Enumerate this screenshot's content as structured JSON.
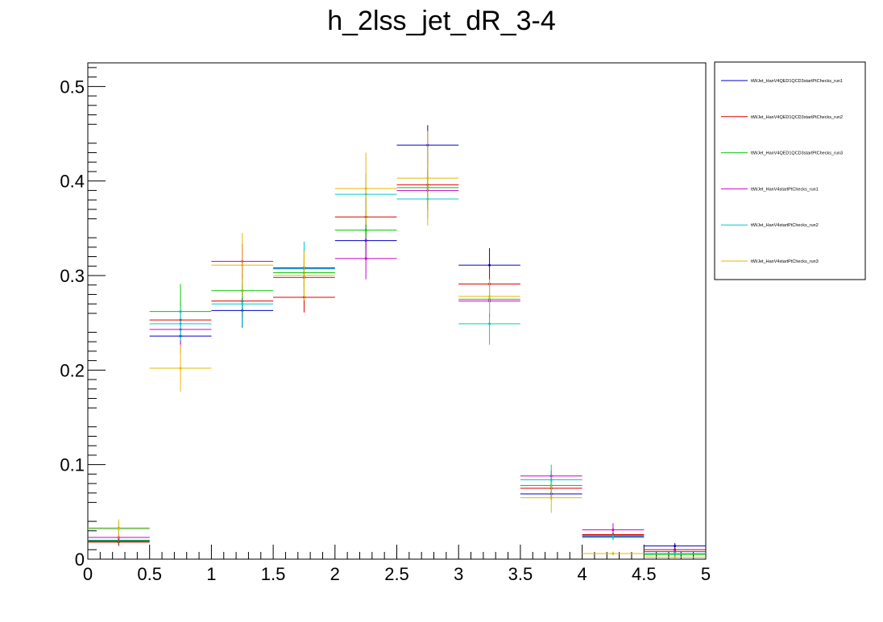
{
  "chart_data": {
    "type": "scatter",
    "title": "h_2lss_jet_dR_3-4",
    "xlabel": "",
    "ylabel": "",
    "xlim": [
      0,
      5
    ],
    "ylim": [
      0,
      0.525
    ],
    "x_ticks": [
      {
        "value": 0,
        "label": "0"
      },
      {
        "value": 0.5,
        "label": "0.5"
      },
      {
        "value": 1,
        "label": "1"
      },
      {
        "value": 1.5,
        "label": "1.5"
      },
      {
        "value": 2,
        "label": "2"
      },
      {
        "value": 2.5,
        "label": "2.5"
      },
      {
        "value": 3,
        "label": "3"
      },
      {
        "value": 3.5,
        "label": "3.5"
      },
      {
        "value": 4,
        "label": "4"
      },
      {
        "value": 4.5,
        "label": "4.5"
      },
      {
        "value": 5,
        "label": "5"
      }
    ],
    "y_ticks": [
      {
        "value": 0,
        "label": "0"
      },
      {
        "value": 0.1,
        "label": "0.1"
      },
      {
        "value": 0.2,
        "label": "0.2"
      },
      {
        "value": 0.3,
        "label": "0.3"
      },
      {
        "value": 0.4,
        "label": "0.4"
      },
      {
        "value": 0.5,
        "label": "0.5"
      }
    ],
    "bin_edges": [
      0,
      0.5,
      1,
      1.5,
      2,
      2.5,
      3,
      3.5,
      4,
      4.5,
      5
    ],
    "grid": false,
    "legend_position": "right",
    "series": [
      {
        "name": "ttWJet_HanV4QED1QCD3startPtChecks_run1",
        "color": "#0000cc",
        "values": [
          0.019,
          0.236,
          0.263,
          0.308,
          0.337,
          0.438,
          0.311,
          0.069,
          0.024,
          0.014
        ],
        "errors": [
          0.004,
          0.018,
          0.018,
          0.02,
          0.021,
          0.021,
          0.018,
          0.006,
          0.003,
          0.003
        ]
      },
      {
        "name": "ttWJet_HanV4QED1QCD3startPtChecks_run2",
        "color": "#dd0000",
        "values": [
          0.018,
          0.253,
          0.273,
          0.277,
          0.362,
          0.396,
          0.291,
          0.075,
          0.026,
          0.01
        ],
        "errors": [
          0.004,
          0.018,
          0.018,
          0.016,
          0.021,
          0.021,
          0.018,
          0.006,
          0.003,
          0.002
        ]
      },
      {
        "name": "ttWJet_HanV4QED1QCD3startPtChecks_run3",
        "color": "#00cc00",
        "values": [
          0.02,
          0.262,
          0.284,
          0.303,
          0.348,
          0.393,
          0.275,
          0.078,
          0.025,
          0.005
        ],
        "errors": [
          0.004,
          0.029,
          0.018,
          0.02,
          0.021,
          0.021,
          0.018,
          0.006,
          0.003,
          0.002
        ]
      },
      {
        "name": "ttWJet_HanV4startPtChecks_run1",
        "color": "#cc00cc",
        "values": [
          0.023,
          0.243,
          0.315,
          0.298,
          0.318,
          0.39,
          0.273,
          0.088,
          0.031,
          0.008
        ],
        "errors": [
          0.004,
          0.018,
          0.018,
          0.02,
          0.022,
          0.021,
          0.018,
          0.006,
          0.007,
          0.002
        ]
      },
      {
        "name": "ttWJet_HanV4startPtChecks_run2",
        "color": "#00cccc",
        "values": [
          0.033,
          0.249,
          0.27,
          0.307,
          0.386,
          0.381,
          0.249,
          0.084,
          0.023,
          0.006
        ],
        "errors": [
          0.006,
          0.018,
          0.024,
          0.029,
          0.021,
          0.021,
          0.022,
          0.016,
          0.003,
          0.002
        ]
      },
      {
        "name": "ttWJet_HanV4startPtChecks_run3",
        "color": "#e6b800",
        "values": [
          0.032,
          0.202,
          0.311,
          0.3,
          0.392,
          0.403,
          0.278,
          0.065,
          0.006,
          0.002
        ],
        "errors": [
          0.01,
          0.025,
          0.034,
          0.026,
          0.038,
          0.05,
          0.018,
          0.016,
          0.002,
          0.001
        ]
      }
    ]
  }
}
